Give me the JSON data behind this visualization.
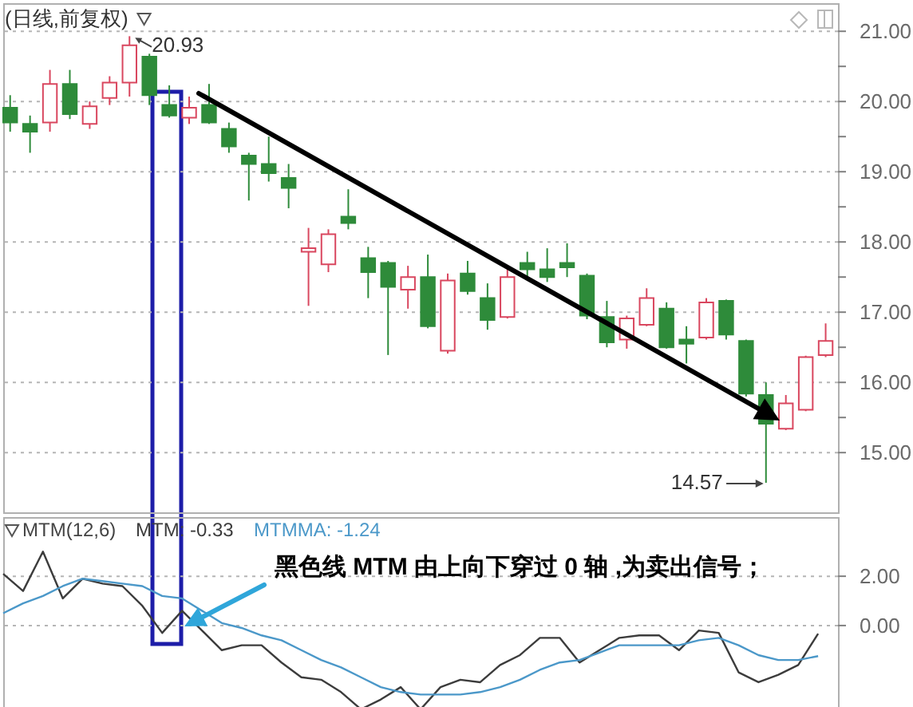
{
  "chart_data": [
    {
      "type": "candlestick",
      "title": "(日线,前复权)",
      "categories": [
        null,
        null,
        null,
        null,
        null,
        null,
        null,
        null,
        null,
        null,
        null,
        null,
        null,
        null,
        null,
        null,
        null,
        null,
        null,
        null,
        null,
        null,
        null,
        null,
        null,
        null,
        null,
        null,
        null,
        null,
        null,
        null,
        null,
        null,
        null,
        null,
        null,
        null,
        null,
        null,
        null,
        null
      ],
      "ohlc": [
        [
          19.91,
          20.09,
          19.57,
          19.7
        ],
        [
          19.68,
          19.8,
          19.27,
          19.57
        ],
        [
          19.7,
          20.45,
          19.57,
          20.25
        ],
        [
          20.25,
          20.45,
          19.75,
          19.82
        ],
        [
          19.68,
          20.0,
          19.61,
          19.93
        ],
        [
          20.05,
          20.36,
          19.95,
          20.27
        ],
        [
          20.27,
          20.93,
          20.07,
          20.8
        ],
        [
          20.64,
          20.68,
          19.95,
          20.09
        ],
        [
          19.95,
          20.23,
          19.77,
          19.8
        ],
        [
          19.77,
          20.07,
          19.68,
          19.91
        ],
        [
          19.95,
          20.25,
          19.68,
          19.7
        ],
        [
          19.61,
          19.7,
          19.27,
          19.36
        ],
        [
          19.23,
          19.27,
          18.59,
          19.11
        ],
        [
          19.11,
          19.5,
          18.86,
          18.98
        ],
        [
          18.91,
          19.11,
          18.48,
          18.77
        ],
        [
          17.86,
          18.2,
          17.09,
          17.91
        ],
        [
          17.68,
          18.18,
          17.57,
          18.11
        ],
        [
          18.36,
          18.75,
          18.18,
          18.27
        ],
        [
          17.77,
          17.93,
          17.2,
          17.57
        ],
        [
          17.7,
          17.73,
          16.39,
          17.36
        ],
        [
          17.32,
          17.66,
          17.05,
          17.5
        ],
        [
          17.5,
          17.82,
          16.77,
          16.8
        ],
        [
          16.45,
          17.55,
          16.41,
          17.45
        ],
        [
          17.55,
          17.73,
          17.25,
          17.3
        ],
        [
          17.2,
          17.41,
          16.75,
          16.89
        ],
        [
          16.93,
          17.61,
          16.91,
          17.5
        ],
        [
          17.7,
          17.86,
          17.5,
          17.61
        ],
        [
          17.61,
          17.91,
          17.43,
          17.5
        ],
        [
          17.7,
          17.98,
          17.5,
          17.64
        ],
        [
          17.52,
          17.55,
          16.9,
          16.95
        ],
        [
          16.93,
          17.16,
          16.5,
          16.57
        ],
        [
          16.61,
          16.95,
          16.48,
          16.91
        ],
        [
          16.82,
          17.34,
          16.8,
          17.2
        ],
        [
          17.05,
          17.14,
          16.48,
          16.5
        ],
        [
          16.61,
          16.8,
          16.27,
          16.55
        ],
        [
          16.64,
          17.2,
          16.61,
          17.14
        ],
        [
          17.16,
          17.18,
          16.61,
          16.68
        ],
        [
          16.59,
          16.61,
          15.8,
          15.84
        ],
        [
          15.82,
          16.0,
          14.57,
          15.41
        ],
        [
          15.34,
          15.82,
          15.32,
          15.7
        ],
        [
          15.61,
          16.38,
          15.59,
          16.36
        ],
        [
          16.39,
          16.84,
          16.36,
          16.59
        ]
      ],
      "colors": [
        "#2e8b3a",
        "#2e8b3a",
        "#d9475f",
        "#2e8b3a",
        "#d9475f",
        "#d9475f",
        "#d9475f",
        "#2e8b3a",
        "#2e8b3a",
        "#d9475f",
        "#2e8b3a",
        "#2e8b3a",
        "#2e8b3a",
        "#2e8b3a",
        "#2e8b3a",
        "#d9475f",
        "#d9475f",
        "#2e8b3a",
        "#2e8b3a",
        "#2e8b3a",
        "#d9475f",
        "#2e8b3a",
        "#d9475f",
        "#2e8b3a",
        "#2e8b3a",
        "#d9475f",
        "#2e8b3a",
        "#2e8b3a",
        "#2e8b3a",
        "#2e8b3a",
        "#2e8b3a",
        "#d9475f",
        "#d9475f",
        "#2e8b3a",
        "#2e8b3a",
        "#d9475f",
        "#2e8b3a",
        "#2e8b3a",
        "#2e8b3a",
        "#d9475f",
        "#d9475f",
        "#d9475f"
      ],
      "ylim": [
        14.15,
        21.4
      ],
      "yticks": [
        {
          "value": 15,
          "label": "15.00"
        },
        {
          "value": 15.5,
          "label": null
        },
        {
          "value": 16,
          "label": "16.00"
        },
        {
          "value": 16.5,
          "label": null
        },
        {
          "value": 17,
          "label": "17.00"
        },
        {
          "value": 17.5,
          "label": null
        },
        {
          "value": 18,
          "label": "18.00"
        },
        {
          "value": 18.5,
          "label": null
        },
        {
          "value": 19,
          "label": "19.00"
        },
        {
          "value": 19.5,
          "label": null
        },
        {
          "value": 20,
          "label": "20.00"
        },
        {
          "value": 20.5,
          "label": null
        },
        {
          "value": 21,
          "label": "21.00"
        }
      ],
      "grid": "y",
      "annotations": [
        "20.93",
        "14.57"
      ]
    },
    {
      "type": "line",
      "legend_title": "MTM(12,6)",
      "categories": [
        null,
        null,
        null,
        null,
        null,
        null,
        null,
        null,
        null,
        null,
        null,
        null,
        null,
        null,
        null,
        null,
        null,
        null,
        null,
        null,
        null,
        null,
        null,
        null,
        null,
        null,
        null,
        null,
        null,
        null,
        null,
        null,
        null,
        null,
        null,
        null,
        null,
        null,
        null,
        null,
        null,
        null
      ],
      "series": [
        {
          "name": "MTM: -0.33",
          "color": "#3c3c3c",
          "values": [
            2.1,
            1.4,
            3.0,
            1.1,
            1.9,
            1.7,
            1.6,
            0.8,
            -0.3,
            0.6,
            -0.2,
            -1.0,
            -0.8,
            -0.8,
            -1.5,
            -2.1,
            -2.2,
            -2.7,
            -3.4,
            -3.0,
            -2.5,
            -3.4,
            -2.5,
            -2.2,
            -2.3,
            -1.6,
            -1.2,
            -0.5,
            -0.5,
            -1.5,
            -1.0,
            -0.5,
            -0.4,
            -0.4,
            -1.0,
            -0.2,
            -0.3,
            -1.9,
            -2.3,
            -2.0,
            -1.6,
            -0.33
          ]
        },
        {
          "name": "MTMMA: -1.24",
          "color": "#4b98c9",
          "values": [
            0.5,
            0.9,
            1.2,
            1.6,
            1.9,
            1.8,
            1.7,
            1.6,
            1.2,
            1.1,
            0.6,
            0.1,
            -0.1,
            -0.4,
            -0.6,
            -1.0,
            -1.4,
            -1.7,
            -2.1,
            -2.5,
            -2.7,
            -2.8,
            -2.8,
            -2.8,
            -2.7,
            -2.5,
            -2.2,
            -1.8,
            -1.5,
            -1.4,
            -1.1,
            -0.8,
            -0.8,
            -0.8,
            -0.8,
            -0.6,
            -0.5,
            -0.8,
            -1.2,
            -1.4,
            -1.4,
            -1.24
          ]
        }
      ],
      "ylim": [
        -3.5,
        4.4
      ],
      "yticks": [
        {
          "value": 2,
          "label": "2.00"
        },
        {
          "value": 0,
          "label": "0.00"
        }
      ],
      "grid": "y",
      "legend": "top left",
      "annotations": [
        "黑色线 MTM 由上向下穿过 0 轴 ,为卖出信号；"
      ]
    }
  ]
}
